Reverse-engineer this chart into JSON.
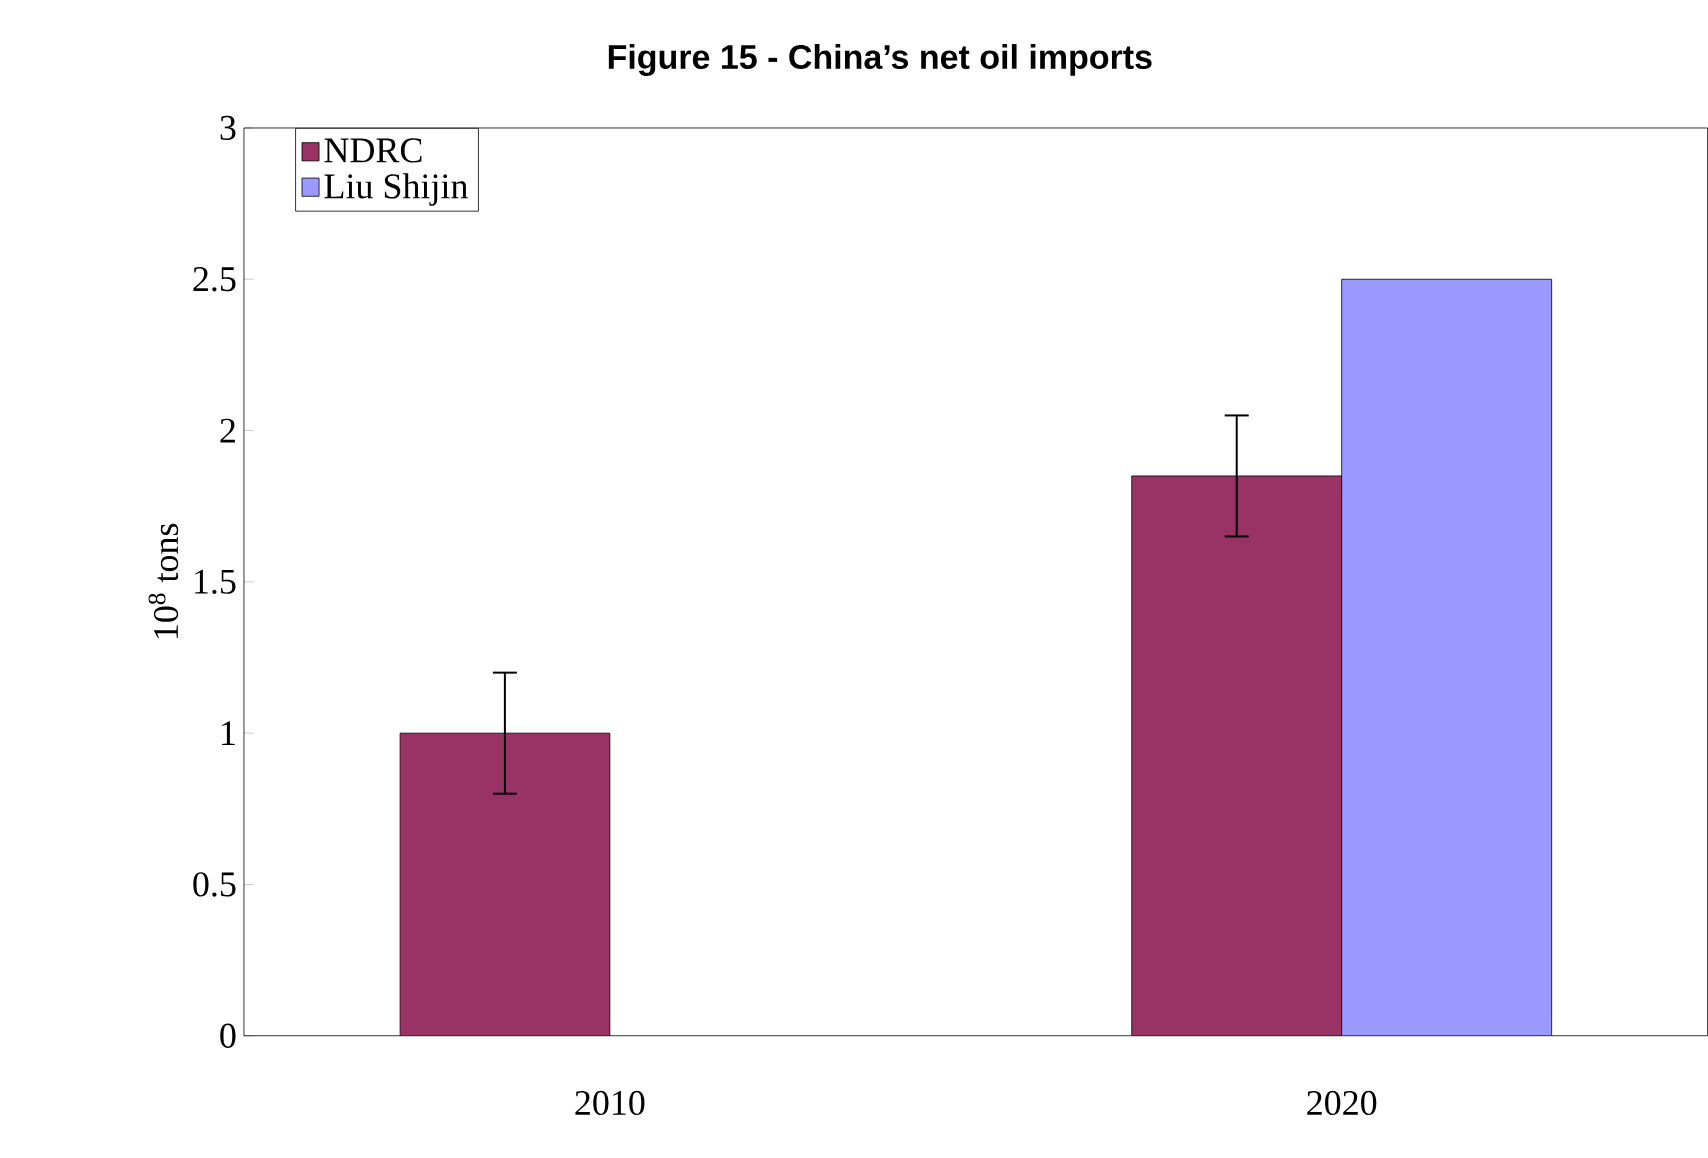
{
  "chart_data": {
    "type": "bar",
    "title": "Figure 15 - China’s net oil imports",
    "ylabel": "10$^{8}$ tons",
    "categories": [
      "2010",
      "2020"
    ],
    "series": [
      {
        "name": "NDRC",
        "color": "#993366",
        "values": [
          1.0,
          1.85
        ],
        "errors": [
          0.2,
          0.2
        ]
      },
      {
        "name": "Liu Shijin",
        "color": "#9999ff",
        "values": [
          null,
          2.5
        ]
      }
    ],
    "ylim": [
      0,
      3
    ],
    "yticks": [
      0,
      0.5,
      1,
      1.5,
      2,
      2.5,
      3
    ],
    "grid": false,
    "legend": "top left"
  }
}
